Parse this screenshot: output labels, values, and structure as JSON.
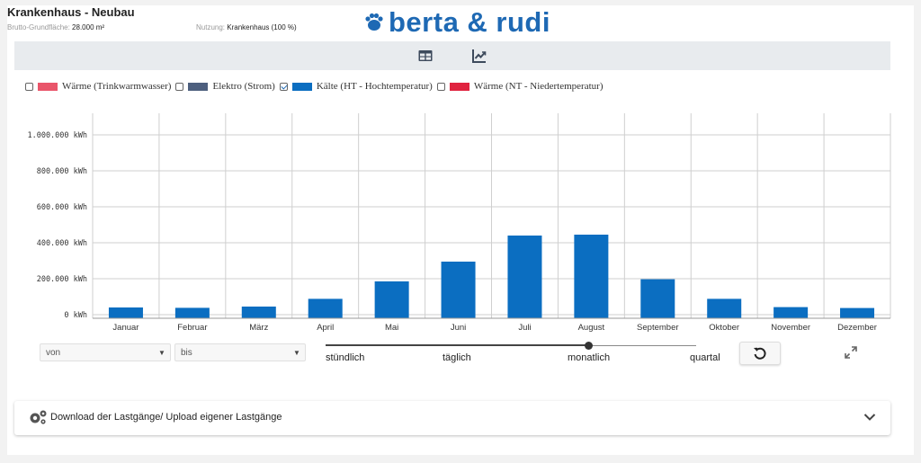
{
  "header": {
    "title": "Krankenhaus - Neubau",
    "area_label": "Brutto-Grundfläche:",
    "area_value": "28.000 m²",
    "usage_label": "Nutzung:",
    "usage_value": "Krankenhaus (100 %)",
    "logo_text": "berta & rudi"
  },
  "view_tabs": [
    {
      "icon": "table-icon"
    },
    {
      "icon": "line-chart-icon"
    }
  ],
  "legend": [
    {
      "label": "Wärme (Trinkwarmwasser)",
      "color": "#e9556a",
      "checked": false
    },
    {
      "label": "Elektro (Strom)",
      "color": "#4d5f7e",
      "checked": false
    },
    {
      "label": "Kälte (HT - Hochtemperatur)",
      "color": "#0b6ec1",
      "checked": true
    },
    {
      "label": "Wärme (NT - Niedertemperatur)",
      "color": "#e0233f",
      "checked": false
    }
  ],
  "chart_data": {
    "type": "bar",
    "categories": [
      "Januar",
      "Februar",
      "März",
      "April",
      "Mai",
      "Juni",
      "Juli",
      "August",
      "September",
      "Oktober",
      "November",
      "Dezember"
    ],
    "series": [
      {
        "name": "Kälte (HT - Hochtemperatur)",
        "values": [
          40000,
          38000,
          45000,
          88000,
          185000,
          295000,
          440000,
          445000,
          197000,
          88000,
          42000,
          37000
        ],
        "color": "#0b6ec1"
      }
    ],
    "yticks": [
      "0 kWh",
      "200.000 kWh",
      "400.000 kWh",
      "600.000 kWh",
      "800.000 kWh",
      "1.000.000 kWh"
    ],
    "ylim": [
      0,
      1100000
    ],
    "grid": true
  },
  "controls": {
    "from_placeholder": "von",
    "to_placeholder": "bis",
    "resolution_options": [
      "stündlich",
      "täglich",
      "monatlich",
      "quartal"
    ],
    "resolution_selected": "monatlich"
  },
  "accordion": {
    "label": "Download der Lastgänge/ Upload eigener Lastgänge"
  }
}
